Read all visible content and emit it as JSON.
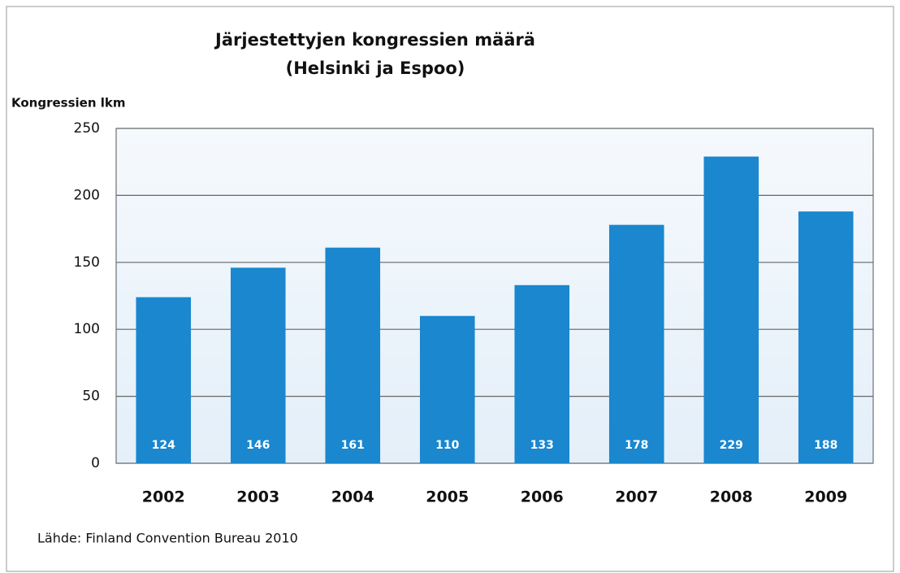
{
  "chart_data": {
    "type": "bar",
    "title": "Järjestettyjen kongressien määrä",
    "subtitle": "(Helsinki ja Espoo)",
    "y_label": "Kongressien lkm",
    "source": "Lähde: Finland Convention Bureau 2010",
    "categories": [
      "2002",
      "2003",
      "2004",
      "2005",
      "2006",
      "2007",
      "2008",
      "2009"
    ],
    "values": [
      124,
      146,
      161,
      110,
      133,
      178,
      229,
      188
    ],
    "color": "#1a87cf",
    "ylim": [
      0,
      250
    ],
    "yticks": [
      0,
      50,
      100,
      150,
      200,
      250
    ],
    "grid": true
  }
}
